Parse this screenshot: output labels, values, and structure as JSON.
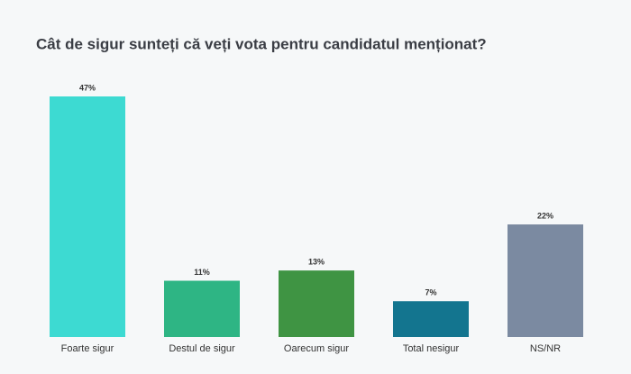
{
  "chart_data": {
    "type": "bar",
    "title": "Cât de sigur sunteți că veți vota pentru candidatul menționat?",
    "categories": [
      "Foarte sigur",
      "Destul de sigur",
      "Oarecum sigur",
      "Total nesigur",
      "NS/NR"
    ],
    "values": [
      47,
      11,
      13,
      7,
      22
    ],
    "value_labels": [
      "47%",
      "11%",
      "13%",
      "7%",
      "22%"
    ],
    "colors": [
      "#3ddad2",
      "#2eb584",
      "#3f9443",
      "#13758f",
      "#7b8aa1"
    ]
  }
}
